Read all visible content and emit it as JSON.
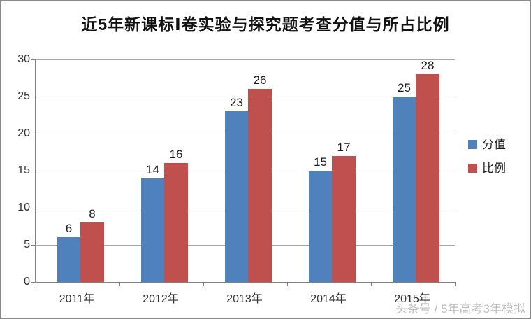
{
  "chart_data": {
    "type": "bar",
    "title": "近5年新课标Ⅰ卷实验与探究题考查分值与所占比例",
    "categories": [
      "2011年",
      "2012年",
      "2013年",
      "2014年",
      "2015年"
    ],
    "series": [
      {
        "name": "分值",
        "color": "#4F81BD",
        "values": [
          6,
          14,
          23,
          15,
          25
        ]
      },
      {
        "name": "比例",
        "color": "#C0504D",
        "values": [
          8,
          16,
          26,
          17,
          28
        ]
      }
    ],
    "ylim": [
      0,
      30
    ],
    "yticks": [
      0,
      5,
      10,
      15,
      20,
      25,
      30
    ],
    "grid": true,
    "legend_position": "right",
    "bar_value_labels": true
  },
  "colors": {
    "gridline": "#a6a6a6",
    "axis": "#808080",
    "text": "#1c1c1c",
    "frame_border": "#8a8a8a",
    "watermark": "#bdbdbd"
  },
  "watermark": {
    "text": "头条号 / 5年高考3年模拟"
  }
}
